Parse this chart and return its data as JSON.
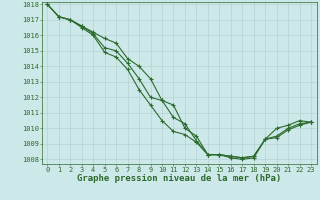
{
  "title": "Graphe pression niveau de la mer (hPa)",
  "x_labels": [
    0,
    1,
    2,
    3,
    4,
    5,
    6,
    7,
    8,
    9,
    10,
    11,
    12,
    13,
    14,
    15,
    16,
    17,
    18,
    19,
    20,
    21,
    22,
    23
  ],
  "ylim": [
    1008,
    1018
  ],
  "yticks": [
    1008,
    1009,
    1010,
    1011,
    1012,
    1013,
    1014,
    1015,
    1016,
    1017,
    1018
  ],
  "background_color": "#cce8e8",
  "grid_color": "#b0cccc",
  "line_color": "#2d6a2d",
  "series": [
    [
      1018.0,
      1017.2,
      1017.0,
      1016.6,
      1016.2,
      1015.8,
      1015.5,
      1014.5,
      1014.0,
      1013.2,
      1011.8,
      1011.5,
      1010.0,
      1009.5,
      1008.3,
      1008.3,
      1008.2,
      1008.1,
      1008.2,
      1009.3,
      1010.0,
      1010.2,
      1010.5,
      1010.4
    ],
    [
      1018.0,
      1017.2,
      1017.0,
      1016.6,
      1016.1,
      1015.2,
      1015.0,
      1014.2,
      1013.2,
      1012.0,
      1011.8,
      1010.7,
      1010.3,
      1009.2,
      1008.3,
      1008.3,
      1008.2,
      1008.1,
      1008.2,
      1009.3,
      1009.5,
      1010.0,
      1010.3,
      1010.4
    ],
    [
      1018.0,
      1017.2,
      1017.0,
      1016.5,
      1016.0,
      1014.9,
      1014.6,
      1013.8,
      1012.5,
      1011.5,
      1010.5,
      1009.8,
      1009.6,
      1009.1,
      1008.3,
      1008.3,
      1008.1,
      1008.0,
      1008.1,
      1009.3,
      1009.4,
      1009.9,
      1010.2,
      1010.4
    ]
  ],
  "line_width": 0.8,
  "marker": "+",
  "marker_size": 3,
  "marker_edge_width": 0.8,
  "title_fontsize": 6.5,
  "tick_fontsize": 5.0,
  "xlabel_pad": 1
}
